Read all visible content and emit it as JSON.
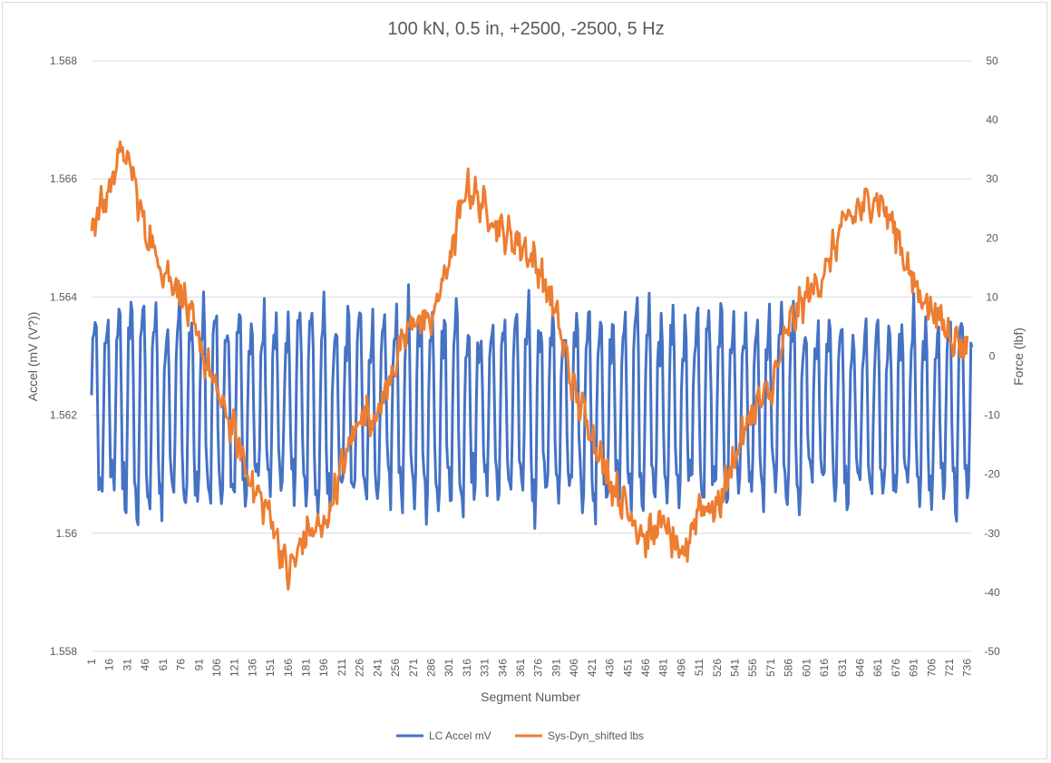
{
  "chart_data": {
    "type": "line",
    "title": "100 kN, 0.5 in, +2500, -2500, 5 Hz",
    "xlabel": "Segment Number",
    "ylabel_left": "Accel (mV (V?))",
    "ylabel_right": "Force (lbf)",
    "ylim_left": [
      1.558,
      1.568
    ],
    "ylim_right": [
      -50,
      50
    ],
    "yticks_left": [
      "1.558",
      "1.56",
      "1.562",
      "1.564",
      "1.566",
      "1.568"
    ],
    "yticks_right": [
      "-50",
      "-40",
      "-30",
      "-20",
      "-10",
      "0",
      "10",
      "20",
      "30",
      "40",
      "50"
    ],
    "x_range": [
      1,
      740
    ],
    "x_ticks": [
      1,
      16,
      31,
      46,
      61,
      76,
      91,
      106,
      121,
      136,
      151,
      166,
      181,
      196,
      211,
      226,
      241,
      256,
      271,
      286,
      301,
      316,
      331,
      346,
      361,
      376,
      391,
      406,
      421,
      436,
      451,
      466,
      481,
      496,
      511,
      526,
      541,
      556,
      571,
      586,
      601,
      616,
      631,
      646,
      661,
      676,
      691,
      706,
      721,
      736
    ],
    "grid": true,
    "legend": "bottom",
    "series": [
      {
        "name": "LC Accel mV",
        "axis": "left",
        "color": "#4472c4",
        "oscillation_period_segments": 10.1,
        "midline": 1.5621,
        "amplitude_range": [
          0.0026,
          0.0037
        ]
      },
      {
        "name": "Sys-Dyn_shifted lbs",
        "axis": "right",
        "color": "#ed7d31",
        "envelope_x": [
          1,
          16,
          24,
          34,
          45,
          60,
          76,
          90,
          106,
          121,
          136,
          151,
          166,
          181,
          196,
          211,
          226,
          241,
          256,
          271,
          286,
          301,
          316,
          331,
          346,
          361,
          376,
          391,
          406,
          421,
          436,
          451,
          466,
          481,
          496,
          511,
          526,
          541,
          556,
          571,
          586,
          601,
          616,
          631,
          646,
          661,
          676,
          691,
          706,
          721,
          736
        ],
        "envelope_y": [
          22,
          28,
          35,
          32,
          22,
          15,
          11,
          3,
          -6,
          -13,
          -22,
          -27,
          -37,
          -30,
          -29,
          -19,
          -10,
          -10,
          -1,
          6,
          6,
          16,
          29,
          25,
          21,
          19,
          15,
          7,
          -6,
          -13,
          -21,
          -26,
          -31,
          -28,
          -35,
          -25,
          -26,
          -17,
          -9,
          -6,
          5,
          10,
          14,
          22,
          25,
          27,
          21,
          12,
          8,
          4,
          1
        ]
      }
    ]
  }
}
